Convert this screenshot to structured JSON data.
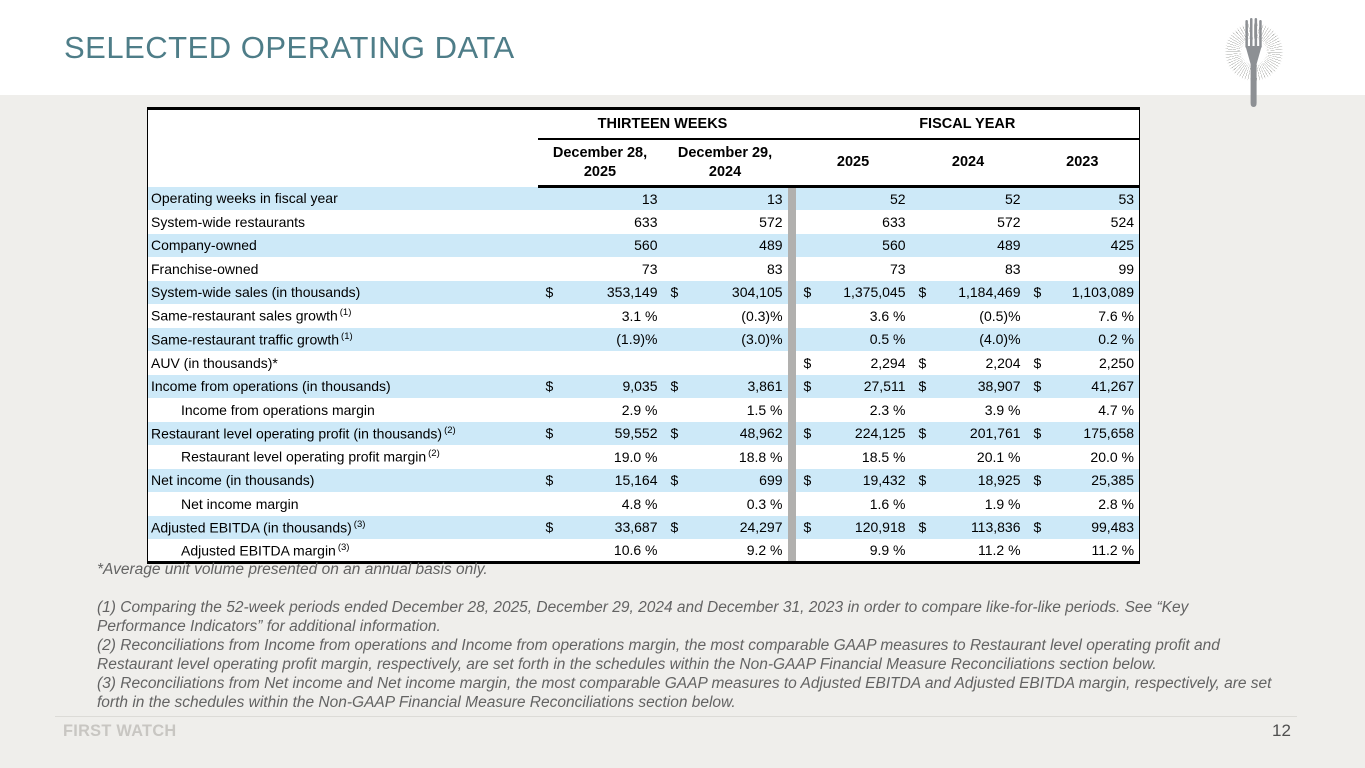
{
  "page": {
    "title": "SELECTED OPERATING DATA",
    "brand": "FIRST WATCH",
    "page_number": "12"
  },
  "colors": {
    "accent_title": "#4e7d88",
    "row_highlight": "#cde9f8",
    "section_divider": "#b1b0ae",
    "slide_background": "#efeeeb"
  },
  "icons": {
    "logo": "first-watch-fork-sunburst"
  },
  "table": {
    "col_groups": [
      {
        "label": "THIRTEEN WEEKS",
        "span": 2
      },
      {
        "label": "FISCAL YEAR",
        "span": 3
      }
    ],
    "col_headers": [
      "December 28, 2025",
      "December 29, 2024",
      "2025",
      "2024",
      "2023"
    ],
    "rows": [
      {
        "label": "Operating weeks in fiscal year",
        "sup": "",
        "indent": false,
        "dollars": [
          false,
          false,
          false,
          false,
          false
        ],
        "values": [
          "13",
          "13",
          "52",
          "52",
          "53"
        ]
      },
      {
        "label": "System-wide restaurants",
        "sup": "",
        "indent": false,
        "dollars": [
          false,
          false,
          false,
          false,
          false
        ],
        "values": [
          "633",
          "572",
          "633",
          "572",
          "524"
        ]
      },
      {
        "label": "Company-owned",
        "sup": "",
        "indent": false,
        "dollars": [
          false,
          false,
          false,
          false,
          false
        ],
        "values": [
          "560",
          "489",
          "560",
          "489",
          "425"
        ]
      },
      {
        "label": "Franchise-owned",
        "sup": "",
        "indent": false,
        "dollars": [
          false,
          false,
          false,
          false,
          false
        ],
        "values": [
          "73",
          "83",
          "73",
          "83",
          "99"
        ]
      },
      {
        "label": "System-wide sales (in thousands)",
        "sup": "",
        "indent": false,
        "dollars": [
          true,
          true,
          true,
          true,
          true
        ],
        "values": [
          "353,149",
          "304,105",
          "1,375,045",
          "1,184,469",
          "1,103,089"
        ]
      },
      {
        "label": "Same-restaurant sales growth",
        "sup": "(1)",
        "indent": false,
        "dollars": [
          false,
          false,
          false,
          false,
          false
        ],
        "values": [
          "3.1 %",
          "(0.3)%",
          "3.6 %",
          "(0.5)%",
          "7.6 %"
        ]
      },
      {
        "label": "Same-restaurant traffic growth",
        "sup": "(1)",
        "indent": false,
        "dollars": [
          false,
          false,
          false,
          false,
          false
        ],
        "values": [
          "(1.9)%",
          "(3.0)%",
          "0.5 %",
          "(4.0)%",
          "0.2 %"
        ]
      },
      {
        "label": "AUV (in thousands)*",
        "sup": "",
        "indent": false,
        "dollars": [
          false,
          false,
          true,
          true,
          true
        ],
        "values": [
          "",
          "",
          "2,294",
          "2,204",
          "2,250"
        ]
      },
      {
        "label": "Income from operations (in thousands)",
        "sup": "",
        "indent": false,
        "dollars": [
          true,
          true,
          true,
          true,
          true
        ],
        "values": [
          "9,035",
          "3,861",
          "27,511",
          "38,907",
          "41,267"
        ]
      },
      {
        "label": "Income from operations margin",
        "sup": "",
        "indent": true,
        "dollars": [
          false,
          false,
          false,
          false,
          false
        ],
        "values": [
          "2.9 %",
          "1.5 %",
          "2.3 %",
          "3.9 %",
          "4.7 %"
        ]
      },
      {
        "label": "Restaurant level operating profit (in thousands)",
        "sup": "(2)",
        "indent": false,
        "dollars": [
          true,
          true,
          true,
          true,
          true
        ],
        "values": [
          "59,552",
          "48,962",
          "224,125",
          "201,761",
          "175,658"
        ]
      },
      {
        "label": "Restaurant level operating profit margin",
        "sup": "(2)",
        "indent": true,
        "dollars": [
          false,
          false,
          false,
          false,
          false
        ],
        "values": [
          "19.0 %",
          "18.8 %",
          "18.5 %",
          "20.1 %",
          "20.0 %"
        ]
      },
      {
        "label": "Net income (in thousands)",
        "sup": "",
        "indent": false,
        "dollars": [
          true,
          true,
          true,
          true,
          true
        ],
        "values": [
          "15,164",
          "699",
          "19,432",
          "18,925",
          "25,385"
        ]
      },
      {
        "label": "Net income margin",
        "sup": "",
        "indent": true,
        "dollars": [
          false,
          false,
          false,
          false,
          false
        ],
        "values": [
          "4.8 %",
          "0.3 %",
          "1.6 %",
          "1.9 %",
          "2.8 %"
        ]
      },
      {
        "label": "Adjusted EBITDA (in thousands)",
        "sup": "(3)",
        "indent": false,
        "dollars": [
          true,
          true,
          true,
          true,
          true
        ],
        "values": [
          "33,687",
          "24,297",
          "120,918",
          "113,836",
          "99,483"
        ]
      },
      {
        "label": "Adjusted EBITDA margin",
        "sup": "(3)",
        "indent": true,
        "dollars": [
          false,
          false,
          false,
          false,
          false
        ],
        "values": [
          "10.6 %",
          "9.2 %",
          "9.9 %",
          "11.2 %",
          "11.2 %"
        ]
      }
    ]
  },
  "footnotes": [
    "*Average unit volume presented on an annual basis only.",
    "(1) Comparing the 52-week periods ended December 28, 2025, December 29, 2024 and December 31, 2023 in order to compare like-for-like periods. See “Key Performance Indicators” for additional information.",
    "(2) Reconciliations from Income from operations and Income from operations margin, the most comparable GAAP measures to Restaurant level operating profit and Restaurant level operating profit margin, respectively, are set forth in the schedules within the Non-GAAP Financial Measure Reconciliations section below.",
    "(3) Reconciliations from Net income and Net income margin, the most comparable GAAP measures to Adjusted EBITDA and Adjusted EBITDA margin, respectively, are set forth in the schedules within the Non-GAAP Financial Measure Reconciliations section below."
  ]
}
